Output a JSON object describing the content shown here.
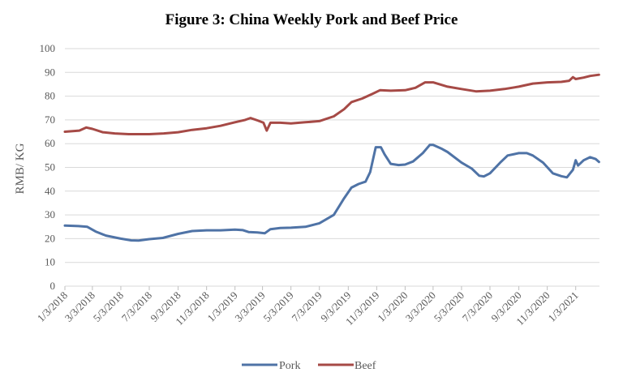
{
  "chart_data": {
    "type": "line",
    "title": "Figure 3: China Weekly Pork and Beef Price",
    "xlabel": "",
    "ylabel": "RMB/ KG",
    "ylim": [
      0,
      100
    ],
    "yticks": [
      0,
      10,
      20,
      30,
      40,
      50,
      60,
      70,
      80,
      90,
      100
    ],
    "grid": true,
    "legend_position": "bottom",
    "xticks": [
      "1/3/2018",
      "3/3/2018",
      "5/3/2018",
      "7/3/2018",
      "9/3/2018",
      "11/3/2018",
      "1/3/2019",
      "3/3/2019",
      "5/3/2019",
      "7/3/2019",
      "9/3/2019",
      "11/3/2019",
      "1/3/2020",
      "3/3/2020",
      "5/3/2020",
      "7/3/2020",
      "9/3/2020",
      "11/3/2020",
      "1/3/2021"
    ],
    "series": [
      {
        "name": "Pork",
        "color": "#4f73a6",
        "points": [
          [
            "2018-01-03",
            25.5
          ],
          [
            "2018-02-01",
            25.3
          ],
          [
            "2018-02-20",
            25.0
          ],
          [
            "2018-03-10",
            23.0
          ],
          [
            "2018-04-01",
            21.3
          ],
          [
            "2018-04-20",
            20.5
          ],
          [
            "2018-05-03",
            20.0
          ],
          [
            "2018-05-25",
            19.3
          ],
          [
            "2018-06-10",
            19.2
          ],
          [
            "2018-07-03",
            19.8
          ],
          [
            "2018-08-01",
            20.3
          ],
          [
            "2018-09-03",
            22.0
          ],
          [
            "2018-10-03",
            23.2
          ],
          [
            "2018-11-03",
            23.5
          ],
          [
            "2018-12-03",
            23.5
          ],
          [
            "2019-01-03",
            23.8
          ],
          [
            "2019-01-20",
            23.6
          ],
          [
            "2019-02-01",
            22.8
          ],
          [
            "2019-02-20",
            22.6
          ],
          [
            "2019-03-08",
            22.3
          ],
          [
            "2019-03-20",
            24.0
          ],
          [
            "2019-04-10",
            24.5
          ],
          [
            "2019-05-03",
            24.6
          ],
          [
            "2019-06-03",
            25.0
          ],
          [
            "2019-07-03",
            26.5
          ],
          [
            "2019-08-03",
            30.0
          ],
          [
            "2019-08-25",
            37.0
          ],
          [
            "2019-09-10",
            41.5
          ],
          [
            "2019-09-25",
            43.0
          ],
          [
            "2019-10-10",
            44.0
          ],
          [
            "2019-10-20",
            48.0
          ],
          [
            "2019-11-01",
            58.5
          ],
          [
            "2019-11-12",
            58.5
          ],
          [
            "2019-11-20",
            55.5
          ],
          [
            "2019-12-03",
            51.5
          ],
          [
            "2019-12-20",
            51.0
          ],
          [
            "2020-01-03",
            51.2
          ],
          [
            "2020-01-20",
            52.5
          ],
          [
            "2020-02-10",
            56.0
          ],
          [
            "2020-02-25",
            59.5
          ],
          [
            "2020-03-03",
            59.5
          ],
          [
            "2020-03-20",
            58.0
          ],
          [
            "2020-04-03",
            56.5
          ],
          [
            "2020-05-03",
            52.0
          ],
          [
            "2020-05-25",
            49.5
          ],
          [
            "2020-06-10",
            46.5
          ],
          [
            "2020-06-20",
            46.2
          ],
          [
            "2020-07-03",
            47.5
          ],
          [
            "2020-07-25",
            52.0
          ],
          [
            "2020-08-10",
            55.0
          ],
          [
            "2020-09-03",
            56.0
          ],
          [
            "2020-09-20",
            56.0
          ],
          [
            "2020-10-03",
            55.0
          ],
          [
            "2020-10-25",
            52.0
          ],
          [
            "2020-11-15",
            47.5
          ],
          [
            "2020-12-03",
            46.3
          ],
          [
            "2020-12-15",
            45.8
          ],
          [
            "2020-12-28",
            49.0
          ],
          [
            "2021-01-03",
            53.0
          ],
          [
            "2021-01-08",
            50.8
          ],
          [
            "2021-01-20",
            53.0
          ],
          [
            "2021-02-03",
            54.3
          ],
          [
            "2021-02-15",
            53.5
          ],
          [
            "2021-02-22",
            52.3
          ]
        ]
      },
      {
        "name": "Beef",
        "color": "#a64a46",
        "points": [
          [
            "2018-01-03",
            65.0
          ],
          [
            "2018-02-03",
            65.5
          ],
          [
            "2018-02-18",
            66.8
          ],
          [
            "2018-03-03",
            66.2
          ],
          [
            "2018-03-25",
            64.8
          ],
          [
            "2018-04-20",
            64.3
          ],
          [
            "2018-05-20",
            64.0
          ],
          [
            "2018-07-03",
            64.0
          ],
          [
            "2018-08-03",
            64.3
          ],
          [
            "2018-09-03",
            64.8
          ],
          [
            "2018-10-03",
            65.8
          ],
          [
            "2018-11-03",
            66.5
          ],
          [
            "2018-12-03",
            67.5
          ],
          [
            "2019-01-03",
            69.0
          ],
          [
            "2019-01-25",
            70.0
          ],
          [
            "2019-02-05",
            70.8
          ],
          [
            "2019-02-20",
            69.8
          ],
          [
            "2019-03-05",
            68.8
          ],
          [
            "2019-03-12",
            65.5
          ],
          [
            "2019-03-20",
            68.8
          ],
          [
            "2019-04-10",
            68.8
          ],
          [
            "2019-05-03",
            68.5
          ],
          [
            "2019-06-03",
            69.0
          ],
          [
            "2019-07-03",
            69.5
          ],
          [
            "2019-08-03",
            71.5
          ],
          [
            "2019-08-25",
            74.5
          ],
          [
            "2019-09-10",
            77.5
          ],
          [
            "2019-10-03",
            79.0
          ],
          [
            "2019-10-25",
            81.0
          ],
          [
            "2019-11-10",
            82.5
          ],
          [
            "2019-12-03",
            82.3
          ],
          [
            "2020-01-03",
            82.5
          ],
          [
            "2020-01-25",
            83.5
          ],
          [
            "2020-02-15",
            85.8
          ],
          [
            "2020-03-03",
            85.8
          ],
          [
            "2020-04-03",
            84.0
          ],
          [
            "2020-05-03",
            83.0
          ],
          [
            "2020-06-03",
            82.0
          ],
          [
            "2020-07-03",
            82.3
          ],
          [
            "2020-08-03",
            83.0
          ],
          [
            "2020-09-03",
            84.0
          ],
          [
            "2020-10-03",
            85.3
          ],
          [
            "2020-11-03",
            85.8
          ],
          [
            "2020-12-03",
            86.0
          ],
          [
            "2020-12-20",
            86.5
          ],
          [
            "2020-12-28",
            88.0
          ],
          [
            "2021-01-03",
            87.2
          ],
          [
            "2021-01-20",
            87.8
          ],
          [
            "2021-02-03",
            88.5
          ],
          [
            "2021-02-22",
            89.0
          ]
        ]
      }
    ]
  }
}
